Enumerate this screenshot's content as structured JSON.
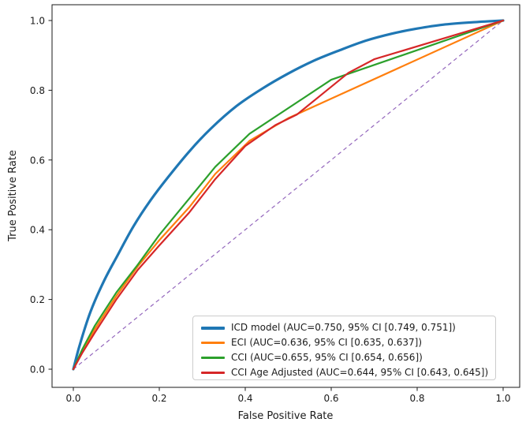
{
  "chart_data": {
    "type": "line",
    "subtype": "roc-curves",
    "xlabel": "False Positive Rate",
    "ylabel": "True Positive Rate",
    "x_ticks": [
      "0.0",
      "0.2",
      "0.4",
      "0.6",
      "0.8",
      "1.0"
    ],
    "y_ticks": [
      "0.0",
      "0.2",
      "0.4",
      "0.6",
      "0.8",
      "1.0"
    ],
    "xlim": [
      0.0,
      1.0
    ],
    "ylim": [
      0.0,
      1.0
    ],
    "grid": false,
    "legend_position": "lower right",
    "series": [
      {
        "id": "icd-model",
        "label": "ICD model (AUC=0.750, 95% CI [0.749, 0.751])",
        "color": "#1f77b4",
        "lw": 3.2,
        "smooth": true,
        "points": [
          [
            0,
            0
          ],
          [
            0.015,
            0.07
          ],
          [
            0.04,
            0.165
          ],
          [
            0.07,
            0.25
          ],
          [
            0.1,
            0.32
          ],
          [
            0.14,
            0.41
          ],
          [
            0.18,
            0.485
          ],
          [
            0.22,
            0.55
          ],
          [
            0.27,
            0.625
          ],
          [
            0.32,
            0.69
          ],
          [
            0.38,
            0.755
          ],
          [
            0.44,
            0.805
          ],
          [
            0.5,
            0.848
          ],
          [
            0.56,
            0.885
          ],
          [
            0.62,
            0.915
          ],
          [
            0.68,
            0.942
          ],
          [
            0.74,
            0.962
          ],
          [
            0.8,
            0.977
          ],
          [
            0.86,
            0.988
          ],
          [
            0.93,
            0.995
          ],
          [
            1,
            1
          ]
        ]
      },
      {
        "id": "eci",
        "label": "ECI (AUC=0.636, 95% CI [0.635, 0.637])",
        "color": "#ff7f0e",
        "lw": 2.2,
        "smooth": false,
        "points": [
          [
            0,
            0
          ],
          [
            0.02,
            0.05
          ],
          [
            0.05,
            0.115
          ],
          [
            0.1,
            0.21
          ],
          [
            0.15,
            0.295
          ],
          [
            0.2,
            0.37
          ],
          [
            0.27,
            0.465
          ],
          [
            0.33,
            0.56
          ],
          [
            0.41,
            0.655
          ],
          [
            0.5,
            0.72
          ],
          [
            1,
            1
          ]
        ]
      },
      {
        "id": "cci",
        "label": "CCI (AUC=0.655, 95% CI [0.654, 0.656])",
        "color": "#2ca02c",
        "lw": 2.2,
        "smooth": false,
        "points": [
          [
            0,
            0
          ],
          [
            0.02,
            0.055
          ],
          [
            0.05,
            0.125
          ],
          [
            0.1,
            0.22
          ],
          [
            0.15,
            0.3
          ],
          [
            0.2,
            0.385
          ],
          [
            0.27,
            0.49
          ],
          [
            0.33,
            0.58
          ],
          [
            0.41,
            0.675
          ],
          [
            0.6,
            0.83
          ],
          [
            1,
            1
          ]
        ]
      },
      {
        "id": "cci-age-adjusted",
        "label": "CCI Age Adjusted (AUC=0.644, 95% CI [0.643, 0.645])",
        "color": "#d62728",
        "lw": 2.2,
        "smooth": false,
        "points": [
          [
            0,
            0
          ],
          [
            0.02,
            0.045
          ],
          [
            0.05,
            0.105
          ],
          [
            0.1,
            0.2
          ],
          [
            0.15,
            0.285
          ],
          [
            0.2,
            0.355
          ],
          [
            0.27,
            0.45
          ],
          [
            0.33,
            0.545
          ],
          [
            0.4,
            0.64
          ],
          [
            0.47,
            0.7
          ],
          [
            0.52,
            0.73
          ],
          [
            0.58,
            0.79
          ],
          [
            0.64,
            0.85
          ],
          [
            0.7,
            0.889
          ],
          [
            1,
            1
          ]
        ]
      }
    ],
    "diagonal": {
      "id": "chance-diagonal",
      "color": "#9467bd",
      "style": "dashed",
      "lw": 1.2,
      "points": [
        [
          0,
          0
        ],
        [
          1,
          1
        ]
      ]
    }
  }
}
